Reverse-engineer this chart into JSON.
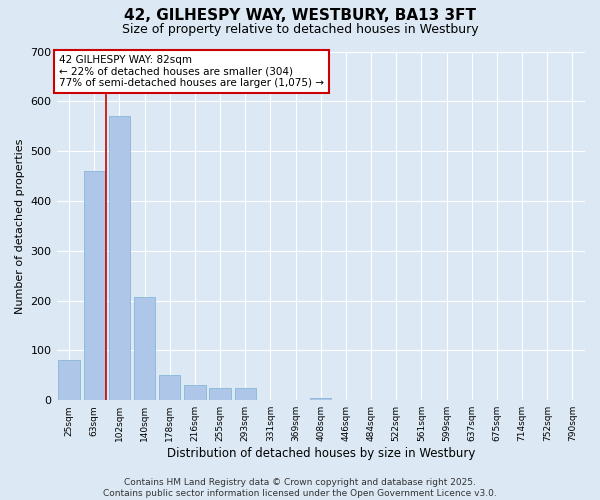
{
  "title": "42, GILHESPY WAY, WESTBURY, BA13 3FT",
  "subtitle": "Size of property relative to detached houses in Westbury",
  "xlabel": "Distribution of detached houses by size in Westbury",
  "ylabel": "Number of detached properties",
  "categories": [
    "25sqm",
    "63sqm",
    "102sqm",
    "140sqm",
    "178sqm",
    "216sqm",
    "255sqm",
    "293sqm",
    "331sqm",
    "369sqm",
    "408sqm",
    "446sqm",
    "484sqm",
    "522sqm",
    "561sqm",
    "599sqm",
    "637sqm",
    "675sqm",
    "714sqm",
    "752sqm",
    "790sqm"
  ],
  "values": [
    80,
    460,
    570,
    207,
    50,
    30,
    25,
    25,
    0,
    0,
    5,
    0,
    0,
    0,
    0,
    0,
    0,
    0,
    0,
    0,
    0
  ],
  "bar_color": "#aec6e8",
  "bar_edge_color": "#7bafd4",
  "background_color": "#dce9f5",
  "plot_bg_color": "#dce9f5",
  "grid_color": "#ffffff",
  "ylim": [
    0,
    700
  ],
  "yticks": [
    0,
    100,
    200,
    300,
    400,
    500,
    600,
    700
  ],
  "property_line_color": "#cc0000",
  "property_line_x": 1.47,
  "annotation_text": "42 GILHESPY WAY: 82sqm\n← 22% of detached houses are smaller (304)\n77% of semi-detached houses are larger (1,075) →",
  "annotation_box_color": "#cc0000",
  "annotation_box_bg": "#ffffff",
  "footer_text": "Contains HM Land Registry data © Crown copyright and database right 2025.\nContains public sector information licensed under the Open Government Licence v3.0.",
  "title_fontsize": 11,
  "subtitle_fontsize": 9,
  "annotation_fontsize": 7.5,
  "footer_fontsize": 6.5,
  "ylabel_fontsize": 8,
  "xlabel_fontsize": 8.5,
  "ytick_fontsize": 8,
  "xtick_fontsize": 6.5
}
